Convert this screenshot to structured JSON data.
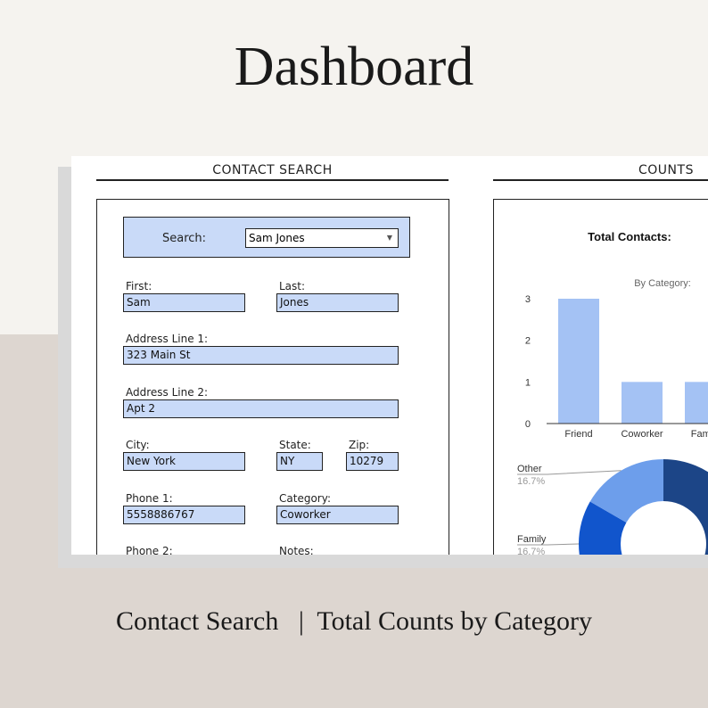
{
  "header": {
    "title": "Dashboard"
  },
  "footer": {
    "caption": "Contact Search   |  Total Counts by Category"
  },
  "contact_search": {
    "heading": "CONTACT SEARCH",
    "search_label": "Search:",
    "search_value": "Sam Jones",
    "fields": [
      {
        "label": "First:",
        "value": "Sam"
      },
      {
        "label": "Last:",
        "value": "Jones"
      },
      {
        "label": "Address Line 1:",
        "value": "323 Main St"
      },
      {
        "label": "Address Line 2:",
        "value": "Apt 2"
      },
      {
        "label": "City:",
        "value": "New York"
      },
      {
        "label": "State:",
        "value": "NY"
      },
      {
        "label": "Zip:",
        "value": "10279"
      },
      {
        "label": "Phone 1:",
        "value": "5558886767"
      },
      {
        "label": "Category:",
        "value": "Coworker"
      },
      {
        "label": "Phone 2:",
        "value": null
      },
      {
        "label": "Notes:",
        "value": null
      }
    ]
  },
  "counts": {
    "heading": "COUNTS"
  },
  "chart_data": [
    {
      "type": "bar",
      "title": "Total Contacts:",
      "subtitle": "By Category:",
      "categories": [
        "Friend",
        "Coworker",
        "Family"
      ],
      "values": [
        3,
        1,
        1
      ],
      "color": "#a4c2f4",
      "ylim": [
        0,
        3
      ],
      "yticks": [
        0,
        1,
        2,
        3
      ],
      "grid": false
    },
    {
      "type": "pie",
      "categories": [
        "Friend",
        "Coworker",
        "Family",
        "Other"
      ],
      "values": [
        3,
        1,
        1,
        1
      ],
      "value_labels": [
        null,
        null,
        "16.7%",
        "16.7%"
      ],
      "colors": [
        "#1c4587",
        "#3c78d8",
        "#1155cc",
        "#6d9eeb"
      ],
      "donut": true
    }
  ]
}
